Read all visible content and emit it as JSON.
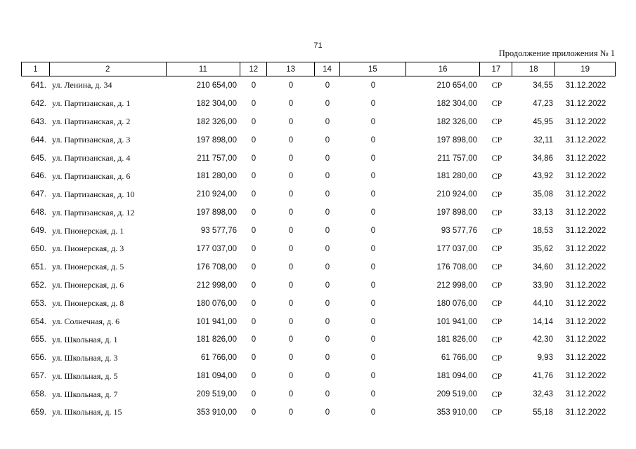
{
  "page_number": "71",
  "continuation_note": "Продолжение приложения № 1",
  "header": [
    "1",
    "2",
    "11",
    "12",
    "13",
    "14",
    "15",
    "16",
    "17",
    "18",
    "19"
  ],
  "rows": [
    [
      "641.",
      "ул. Ленина, д. 34",
      "210 654,00",
      "0",
      "0",
      "0",
      "0",
      "210 654,00",
      "СР",
      "34,55",
      "31.12.2022"
    ],
    [
      "642.",
      "ул. Партизанская, д. 1",
      "182 304,00",
      "0",
      "0",
      "0",
      "0",
      "182 304,00",
      "СР",
      "47,23",
      "31.12.2022"
    ],
    [
      "643.",
      "ул. Партизанская, д. 2",
      "182 326,00",
      "0",
      "0",
      "0",
      "0",
      "182 326,00",
      "СР",
      "45,95",
      "31.12.2022"
    ],
    [
      "644.",
      "ул. Партизанская, д. 3",
      "197 898,00",
      "0",
      "0",
      "0",
      "0",
      "197 898,00",
      "СР",
      "32,11",
      "31.12.2022"
    ],
    [
      "645.",
      "ул. Партизанская, д. 4",
      "211 757,00",
      "0",
      "0",
      "0",
      "0",
      "211 757,00",
      "СР",
      "34,86",
      "31.12.2022"
    ],
    [
      "646.",
      "ул. Партизанская, д. 6",
      "181 280,00",
      "0",
      "0",
      "0",
      "0",
      "181 280,00",
      "СР",
      "43,92",
      "31.12.2022"
    ],
    [
      "647.",
      "ул. Партизанская, д. 10",
      "210 924,00",
      "0",
      "0",
      "0",
      "0",
      "210 924,00",
      "СР",
      "35,08",
      "31.12.2022"
    ],
    [
      "648.",
      "ул. Партизанская, д. 12",
      "197 898,00",
      "0",
      "0",
      "0",
      "0",
      "197 898,00",
      "СР",
      "33,13",
      "31.12.2022"
    ],
    [
      "649.",
      "ул. Пионерская, д. 1",
      "93 577,76",
      "0",
      "0",
      "0",
      "0",
      "93 577,76",
      "СР",
      "18,53",
      "31.12.2022"
    ],
    [
      "650.",
      "ул. Пионерская, д. 3",
      "177 037,00",
      "0",
      "0",
      "0",
      "0",
      "177 037,00",
      "СР",
      "35,62",
      "31.12.2022"
    ],
    [
      "651.",
      "ул. Пионерская, д. 5",
      "176 708,00",
      "0",
      "0",
      "0",
      "0",
      "176 708,00",
      "СР",
      "34,60",
      "31.12.2022"
    ],
    [
      "652.",
      "ул. Пионерская, д. 6",
      "212 998,00",
      "0",
      "0",
      "0",
      "0",
      "212 998,00",
      "СР",
      "33,90",
      "31.12.2022"
    ],
    [
      "653.",
      "ул. Пионерская, д. 8",
      "180 076,00",
      "0",
      "0",
      "0",
      "0",
      "180 076,00",
      "СР",
      "44,10",
      "31.12.2022"
    ],
    [
      "654.",
      "ул. Солнечная, д. 6",
      "101 941,00",
      "0",
      "0",
      "0",
      "0",
      "101 941,00",
      "СР",
      "14,14",
      "31.12.2022"
    ],
    [
      "655.",
      "ул. Школьная, д. 1",
      "181 826,00",
      "0",
      "0",
      "0",
      "0",
      "181 826,00",
      "СР",
      "42,30",
      "31.12.2022"
    ],
    [
      "656.",
      "ул. Школьная, д. 3",
      "61 766,00",
      "0",
      "0",
      "0",
      "0",
      "61 766,00",
      "СР",
      "9,93",
      "31.12.2022"
    ],
    [
      "657.",
      "ул. Школьная, д. 5",
      "181 094,00",
      "0",
      "0",
      "0",
      "0",
      "181 094,00",
      "СР",
      "41,76",
      "31.12.2022"
    ],
    [
      "658.",
      "ул. Школьная, д. 7",
      "209 519,00",
      "0",
      "0",
      "0",
      "0",
      "209 519,00",
      "СР",
      "32,43",
      "31.12.2022"
    ],
    [
      "659.",
      "ул. Школьная, д. 15",
      "353 910,00",
      "0",
      "0",
      "0",
      "0",
      "353 910,00",
      "СР",
      "55,18",
      "31.12.2022"
    ]
  ]
}
